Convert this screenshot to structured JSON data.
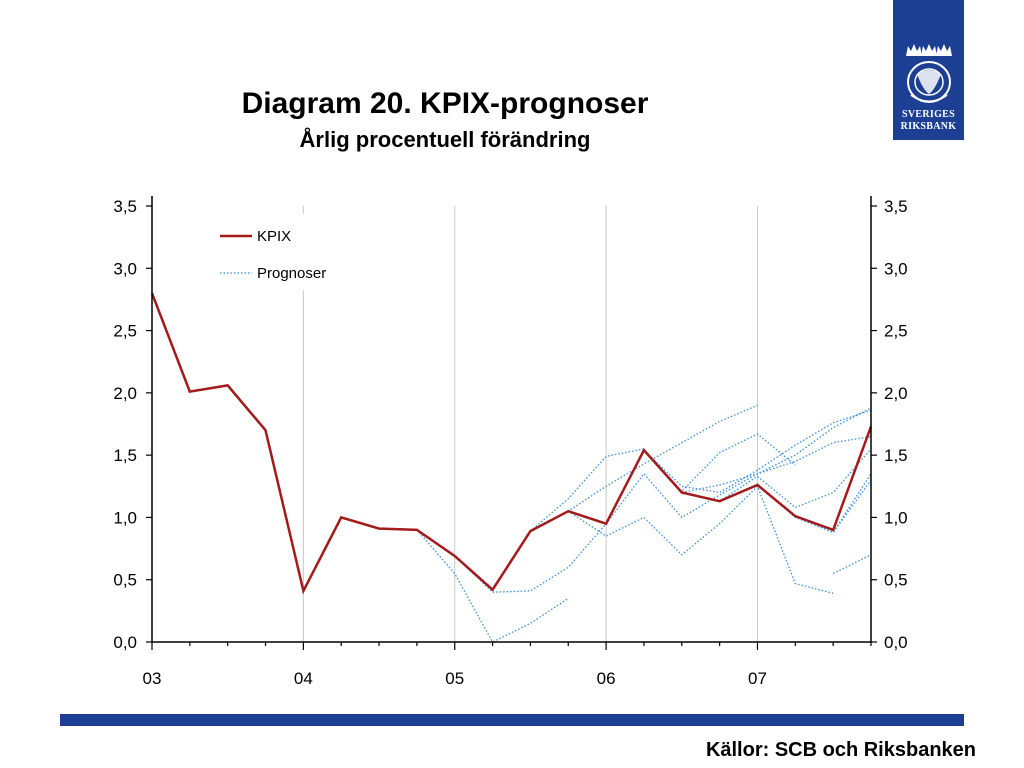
{
  "header": {
    "title": "Diagram 20. KPIX-prognoser",
    "subtitle": "Årlig procentuell förändring"
  },
  "logo": {
    "line1": "SVERIGES",
    "line2": "RIKSBANK",
    "color": "#1c3f94"
  },
  "footer": {
    "sources": "Källor: SCB och Riksbanken",
    "bar_color": "#1c3f94"
  },
  "chart_data": {
    "type": "line",
    "title": "Diagram 20. KPIX-prognoser",
    "subtitle": "Årlig procentuell förändring",
    "xlabel": "",
    "ylabel": "",
    "x_range": [
      2003.0,
      2007.75
    ],
    "x_ticks": [
      {
        "value": 2003,
        "label": "03"
      },
      {
        "value": 2004,
        "label": "04"
      },
      {
        "value": 2005,
        "label": "05"
      },
      {
        "value": 2006,
        "label": "06"
      },
      {
        "value": 2007,
        "label": "07"
      }
    ],
    "ylim": [
      0,
      3.5
    ],
    "y_ticks": [
      {
        "value": 0,
        "label": "0,0"
      },
      {
        "value": 0.5,
        "label": "0,5"
      },
      {
        "value": 1.0,
        "label": "1,0"
      },
      {
        "value": 1.5,
        "label": "1,5"
      },
      {
        "value": 2.0,
        "label": "2,0"
      },
      {
        "value": 2.5,
        "label": "2,5"
      },
      {
        "value": 3.0,
        "label": "3,0"
      },
      {
        "value": 3.5,
        "label": "3,5"
      }
    ],
    "grid": "vertical at year ticks",
    "secondary_y_axis": true,
    "legend": {
      "placement": "top-left",
      "entries": [
        {
          "label": "KPIX",
          "style": "solid",
          "color": "#a31a1a"
        },
        {
          "label": "Prognoser",
          "style": "dotted",
          "color": "#3a8fd6"
        }
      ]
    },
    "series": [
      {
        "name": "KPIX",
        "color": "#a31a1a",
        "style": "solid",
        "x": [
          2003.0,
          2003.25,
          2003.5,
          2003.75,
          2004.0,
          2004.25,
          2004.5,
          2004.75,
          2005.0,
          2005.25,
          2005.5,
          2005.75,
          2006.0,
          2006.25,
          2006.5,
          2006.75,
          2007.0,
          2007.25,
          2007.5,
          2007.75
        ],
        "values": [
          2.8,
          2.01,
          2.06,
          1.7,
          0.41,
          1.0,
          0.91,
          0.9,
          0.69,
          0.42,
          0.89,
          1.05,
          0.95,
          1.54,
          1.2,
          1.13,
          1.26,
          1.01,
          0.9,
          1.73
        ]
      },
      {
        "style": "dotted",
        "color": "#3a8fd6",
        "x": [
          2004.75,
          2005.0,
          2005.25,
          2005.5,
          2005.75
        ],
        "values": [
          0.9,
          0.55,
          0.0,
          0.15,
          0.35
        ]
      },
      {
        "style": "dotted",
        "color": "#3a8fd6",
        "x": [
          2005.0,
          2005.25,
          2005.5,
          2005.75,
          2006.0
        ],
        "values": [
          0.69,
          0.4,
          0.41,
          0.6,
          0.95
        ]
      },
      {
        "style": "dotted",
        "color": "#3a8fd6",
        "x": [
          2005.5,
          2005.75,
          2006.0,
          2006.25,
          2006.5,
          2006.75,
          2007.0
        ],
        "values": [
          0.89,
          1.05,
          1.25,
          1.43,
          1.6,
          1.77,
          1.9
        ]
      },
      {
        "style": "dotted",
        "color": "#3a8fd6",
        "x": [
          2005.5,
          2005.75,
          2006.0,
          2006.25,
          2006.5,
          2006.75,
          2007.0,
          2007.25
        ],
        "values": [
          0.89,
          1.15,
          1.49,
          1.55,
          1.21,
          1.52,
          1.67,
          1.42
        ]
      },
      {
        "style": "dotted",
        "color": "#3a8fd6",
        "x": [
          2005.75,
          2006.0,
          2006.25,
          2006.5,
          2006.75,
          2007.0,
          2007.25,
          2007.5
        ],
        "values": [
          1.05,
          0.85,
          1.0,
          0.7,
          0.95,
          1.25,
          0.47,
          0.39
        ]
      },
      {
        "style": "dotted",
        "color": "#3a8fd6",
        "x": [
          2006.0,
          2006.25,
          2006.5,
          2006.75,
          2007.0,
          2007.25,
          2007.5,
          2007.75
        ],
        "values": [
          0.95,
          1.35,
          1.0,
          1.18,
          1.35,
          1.5,
          1.72,
          1.88
        ]
      },
      {
        "style": "dotted",
        "color": "#3a8fd6",
        "x": [
          2006.25,
          2006.5,
          2006.75,
          2007.0,
          2007.25,
          2007.5,
          2007.75
        ],
        "values": [
          1.54,
          1.25,
          1.2,
          1.38,
          1.58,
          1.76,
          1.86
        ]
      },
      {
        "style": "dotted",
        "color": "#3a8fd6",
        "x": [
          2006.5,
          2006.75,
          2007.0,
          2007.25,
          2007.5,
          2007.75
        ],
        "values": [
          1.2,
          1.26,
          1.35,
          1.45,
          1.6,
          1.65
        ]
      },
      {
        "style": "dotted",
        "color": "#3a8fd6",
        "x": [
          2006.75,
          2007.0,
          2007.25,
          2007.5,
          2007.75
        ],
        "values": [
          1.13,
          1.33,
          1.08,
          1.2,
          1.55
        ]
      },
      {
        "style": "dotted",
        "color": "#3a8fd6",
        "x": [
          2007.0,
          2007.25,
          2007.5,
          2007.75
        ],
        "values": [
          1.26,
          1.0,
          0.88,
          1.3
        ]
      },
      {
        "style": "dotted",
        "color": "#3a8fd6",
        "x": [
          2007.25,
          2007.5,
          2007.75
        ],
        "values": [
          1.01,
          0.88,
          1.35
        ]
      },
      {
        "style": "dotted",
        "color": "#3a8fd6",
        "x": [
          2007.5,
          2007.75
        ],
        "values": [
          0.55,
          0.7
        ]
      }
    ]
  }
}
